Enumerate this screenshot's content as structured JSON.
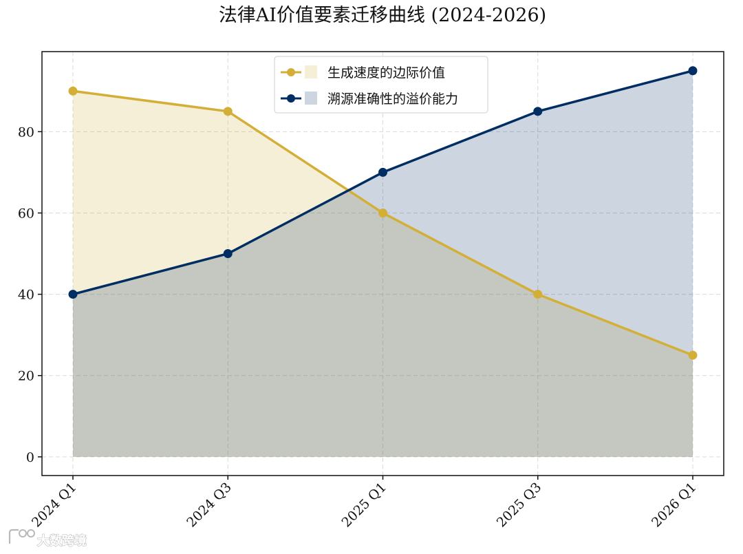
{
  "chart_data": {
    "type": "area",
    "title": "法律AI价值要素迁移曲线 (2024-2026)",
    "xlabel": "",
    "ylabel": "",
    "categories": [
      "2024 Q1",
      "2024 Q3",
      "2025 Q1",
      "2025 Q3",
      "2026 Q1"
    ],
    "ylim": [
      -4.6,
      99.7
    ],
    "yticks": [
      0,
      20,
      40,
      60,
      80
    ],
    "grid": true,
    "legend_position": "top-center",
    "series": [
      {
        "name": "生成速度的边际价值",
        "values": [
          90,
          85,
          60,
          40,
          25
        ],
        "color": "#D4AF37"
      },
      {
        "name": "溯源准确性的溢价能力",
        "values": [
          40,
          50,
          70,
          85,
          95
        ],
        "color": "#002D62"
      }
    ]
  },
  "watermark": {
    "text": "大数跨境"
  }
}
